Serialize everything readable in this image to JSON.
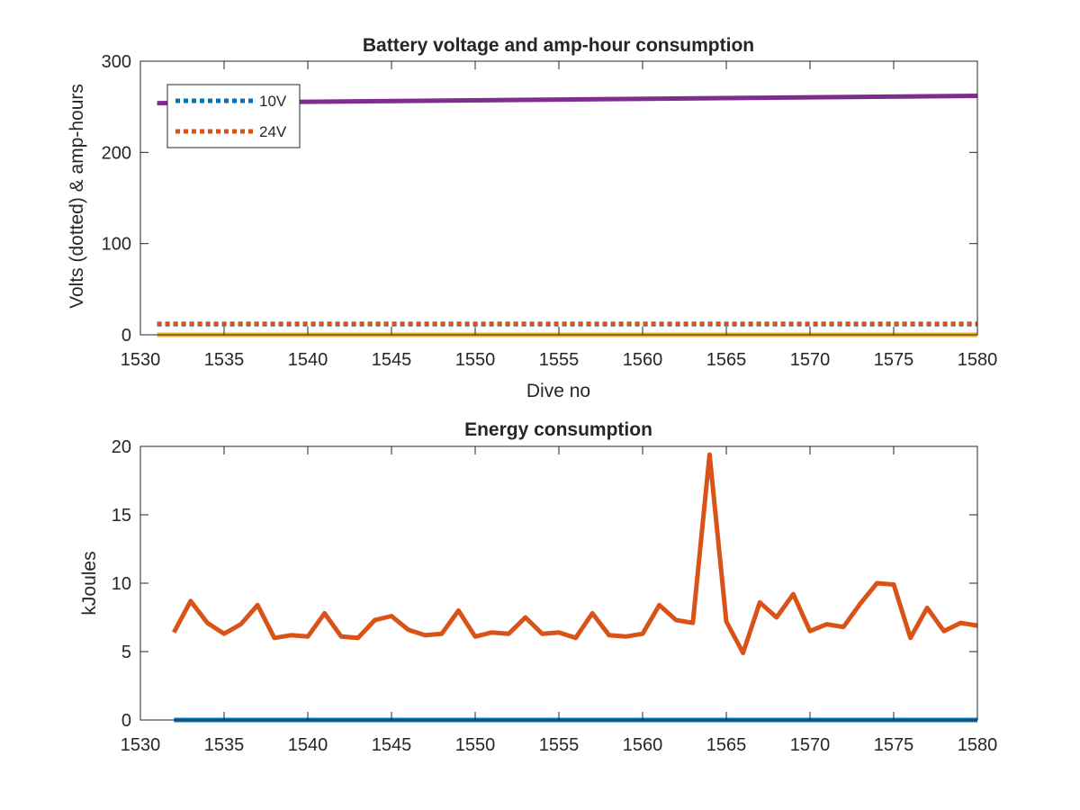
{
  "colors": {
    "blue": "#0072BD",
    "orange": "#D95319",
    "yellow": "#EDB120",
    "purple": "#7E2F8E",
    "axis": "#262626",
    "background": "#ffffff"
  },
  "chart_data": [
    {
      "type": "line",
      "title": "Battery voltage and amp-hour consumption",
      "xlabel": "Dive no",
      "ylabel": "Volts (dotted) & amp-hours",
      "xlim": [
        1530,
        1580
      ],
      "ylim": [
        0,
        300
      ],
      "xticks": [
        1530,
        1535,
        1540,
        1545,
        1550,
        1555,
        1560,
        1565,
        1570,
        1575,
        1580
      ],
      "yticks": [
        0,
        100,
        200,
        300
      ],
      "grid": false,
      "legend": {
        "location": "top-left",
        "entries": [
          "10V",
          "24V"
        ]
      },
      "series": [
        {
          "name": "10V",
          "style": "dotted",
          "color": "#0072BD",
          "x": [
            1531,
            1580
          ],
          "y": [
            11.5,
            11.5
          ]
        },
        {
          "name": "24V",
          "style": "dotted",
          "color": "#D95319",
          "x": [
            1531,
            1580
          ],
          "y": [
            12,
            12
          ]
        },
        {
          "style": "solid",
          "color": "#EDB120",
          "x": [
            1531,
            1580
          ],
          "y": [
            0,
            0
          ]
        },
        {
          "style": "solid",
          "color": "#7E2F8E",
          "x": [
            1531,
            1580
          ],
          "y": [
            254,
            262
          ]
        }
      ]
    },
    {
      "type": "line",
      "title": "Energy consumption",
      "xlabel": "",
      "ylabel": "kJoules",
      "xlim": [
        1530,
        1580
      ],
      "ylim": [
        0,
        20
      ],
      "xticks": [
        1530,
        1535,
        1540,
        1545,
        1550,
        1555,
        1560,
        1565,
        1570,
        1575,
        1580
      ],
      "yticks": [
        0,
        5,
        10,
        15,
        20
      ],
      "grid": false,
      "series": [
        {
          "style": "solid",
          "color": "#D95319",
          "x": [
            1532,
            1533,
            1534,
            1535,
            1536,
            1537,
            1538,
            1539,
            1540,
            1541,
            1542,
            1543,
            1544,
            1545,
            1546,
            1547,
            1548,
            1549,
            1550,
            1551,
            1552,
            1553,
            1554,
            1555,
            1556,
            1557,
            1558,
            1559,
            1560,
            1561,
            1562,
            1563,
            1564,
            1565,
            1566,
            1567,
            1568,
            1569,
            1570,
            1571,
            1572,
            1573,
            1574,
            1575,
            1576,
            1577,
            1578,
            1579,
            1580
          ],
          "y": [
            6.4,
            8.7,
            7.1,
            6.3,
            7.0,
            8.4,
            6.0,
            6.2,
            6.1,
            7.8,
            6.1,
            6.0,
            7.3,
            7.6,
            6.6,
            6.2,
            6.3,
            8.0,
            6.1,
            6.4,
            6.3,
            7.5,
            6.3,
            6.4,
            6.0,
            7.8,
            6.2,
            6.1,
            6.3,
            8.4,
            7.3,
            7.1,
            19.4,
            7.2,
            4.9,
            8.6,
            7.5,
            9.2,
            6.5,
            7.0,
            6.8,
            8.5,
            10.0,
            9.9,
            6.0,
            8.2,
            6.5,
            7.1,
            6.9
          ]
        },
        {
          "style": "solid",
          "color": "#0072BD",
          "x": [
            1532,
            1580
          ],
          "y": [
            0,
            0
          ]
        }
      ]
    }
  ]
}
